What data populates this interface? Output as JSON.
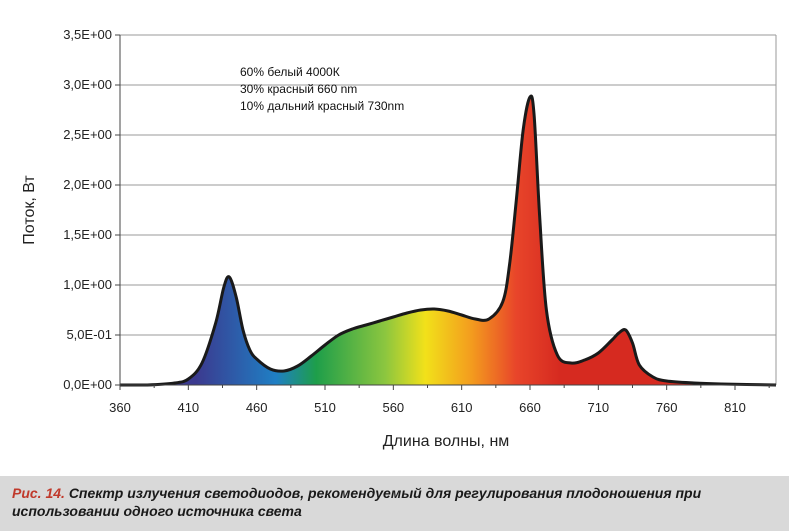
{
  "caption": {
    "label": "Рис. 14.",
    "text": "Спектр излучения светодиодов, рекомендуемый для регулирования плодоношения при использовании одного источника света"
  },
  "chart_data": {
    "type": "area",
    "xlabel": "Длина волны, нм",
    "ylabel": "Поток, Вт",
    "xlim": [
      360,
      840
    ],
    "ylim": [
      0,
      3.5
    ],
    "xticks": [
      360,
      410,
      460,
      510,
      560,
      610,
      660,
      710,
      760,
      810
    ],
    "yticks": [
      0,
      0.5,
      1.0,
      1.5,
      2.0,
      2.5,
      3.0,
      3.5
    ],
    "ytick_labels": [
      "0,0E+00",
      "5,0E-01",
      "1,0E+00",
      "1,5E+00",
      "2,0E+00",
      "2,5E+00",
      "3,0E+00",
      "3,5E+00"
    ],
    "grid": "horizontal",
    "annotations": [
      "60% белый 4000К",
      "30% красный 660 nm",
      "10% дальний красный 730nm"
    ],
    "fill_gradient": [
      "#3b3a8f",
      "#1f7fc4",
      "#1e9e4a",
      "#8cc63f",
      "#f2e11a",
      "#f39a1e",
      "#e8452a",
      "#d62a20"
    ],
    "series": [
      {
        "x": [
          360,
          380,
          400,
          410,
          420,
          430,
          436,
          440,
          445,
          450,
          455,
          460,
          470,
          480,
          490,
          500,
          510,
          520,
          530,
          540,
          550,
          560,
          570,
          580,
          590,
          600,
          610,
          620,
          630,
          640,
          645,
          650,
          655,
          660,
          663,
          667,
          672,
          680,
          690,
          700,
          710,
          720,
          725,
          730,
          735,
          740,
          750,
          760,
          780,
          800,
          840
        ],
        "y": [
          0.0,
          0.0,
          0.02,
          0.06,
          0.22,
          0.62,
          0.98,
          1.08,
          0.88,
          0.55,
          0.35,
          0.26,
          0.16,
          0.14,
          0.19,
          0.29,
          0.4,
          0.5,
          0.56,
          0.6,
          0.64,
          0.68,
          0.72,
          0.75,
          0.76,
          0.74,
          0.7,
          0.66,
          0.66,
          0.83,
          1.2,
          1.85,
          2.55,
          2.88,
          2.7,
          1.7,
          0.75,
          0.3,
          0.22,
          0.25,
          0.32,
          0.45,
          0.52,
          0.55,
          0.42,
          0.2,
          0.08,
          0.04,
          0.02,
          0.01,
          0.0
        ]
      }
    ]
  }
}
